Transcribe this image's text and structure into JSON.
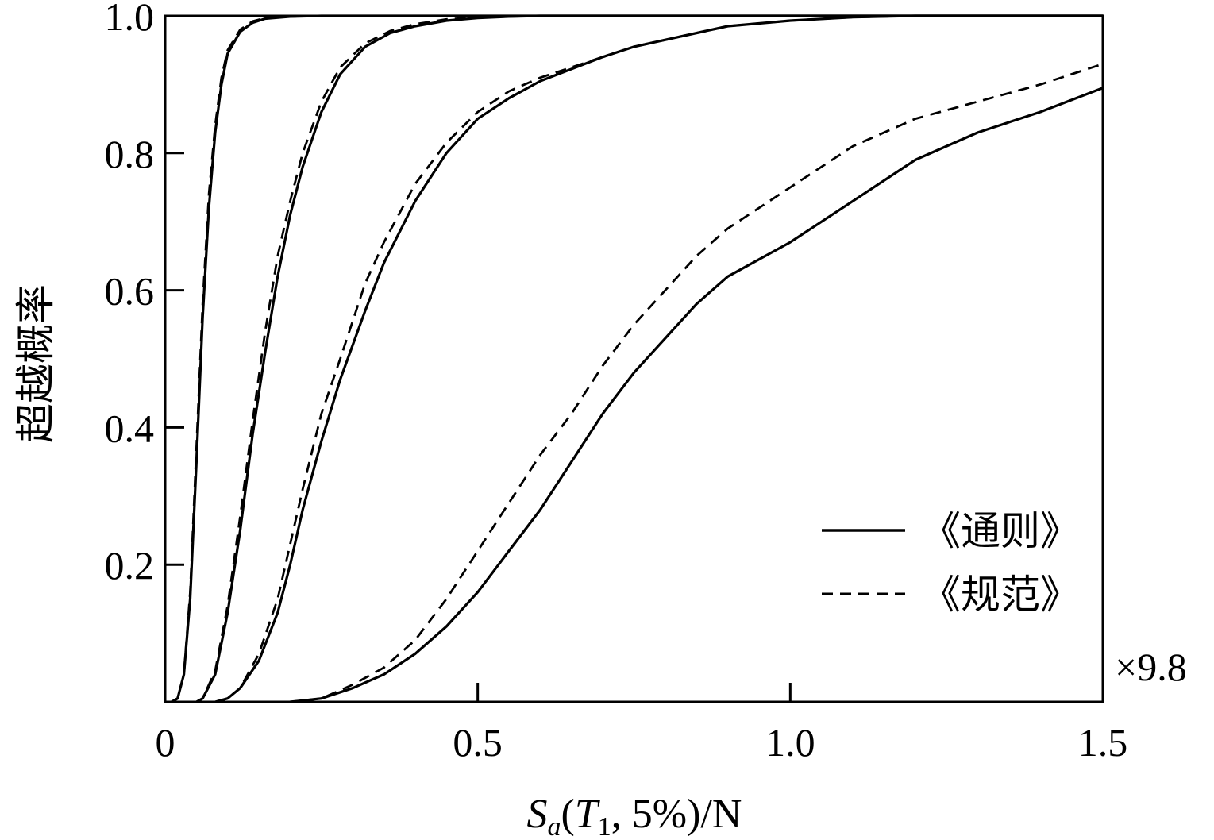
{
  "chart_data": {
    "type": "line",
    "xlim": [
      0,
      1.5
    ],
    "ylim": [
      0,
      1.0
    ],
    "x_ticks": [
      0,
      0.5,
      1.0,
      1.5
    ],
    "x_tick_labels": [
      "0",
      "0.5",
      "1.0",
      "1.5"
    ],
    "y_ticks": [
      0.2,
      0.4,
      0.6,
      0.8,
      1.0
    ],
    "y_tick_labels": [
      "0.2",
      "0.4",
      "0.6",
      "0.8",
      "1.0"
    ],
    "x_multiplier": "×9.8",
    "xlabel": {
      "main": "S",
      "sub": "a",
      "open": "(",
      "t": "T",
      "t_sub": "1",
      "rest": ", 5%)/N"
    },
    "ylabel": "超越概率",
    "grid": false,
    "legend_position": "right",
    "legend": [
      {
        "label": "《通则》",
        "style": "solid"
      },
      {
        "label": "《规范》",
        "style": "dashed"
      }
    ],
    "series": [
      {
        "style": "solid",
        "x": [
          0.01,
          0.02,
          0.03,
          0.04,
          0.05,
          0.06,
          0.07,
          0.08,
          0.09,
          0.1,
          0.12,
          0.14,
          0.16,
          0.2,
          0.25,
          0.3
        ],
        "y": [
          0,
          0.005,
          0.04,
          0.15,
          0.35,
          0.56,
          0.72,
          0.83,
          0.9,
          0.945,
          0.977,
          0.99,
          0.996,
          0.999,
          1.0,
          1.0
        ]
      },
      {
        "style": "dashed",
        "x": [
          0.01,
          0.02,
          0.03,
          0.04,
          0.05,
          0.06,
          0.07,
          0.08,
          0.09,
          0.1,
          0.12,
          0.14,
          0.16,
          0.2,
          0.25,
          0.3
        ],
        "y": [
          0,
          0.005,
          0.04,
          0.16,
          0.37,
          0.58,
          0.74,
          0.84,
          0.91,
          0.95,
          0.98,
          0.992,
          0.997,
          0.999,
          1.0,
          1.0
        ]
      },
      {
        "style": "solid",
        "x": [
          0.05,
          0.06,
          0.08,
          0.1,
          0.12,
          0.14,
          0.16,
          0.18,
          0.2,
          0.22,
          0.25,
          0.28,
          0.32,
          0.36,
          0.4,
          0.45,
          0.5,
          0.55,
          0.6,
          0.7,
          0.8
        ],
        "y": [
          0,
          0.005,
          0.04,
          0.13,
          0.25,
          0.39,
          0.51,
          0.62,
          0.71,
          0.78,
          0.86,
          0.915,
          0.955,
          0.975,
          0.985,
          0.993,
          0.997,
          0.999,
          1.0,
          1.0,
          1.0
        ]
      },
      {
        "style": "dashed",
        "x": [
          0.05,
          0.06,
          0.08,
          0.1,
          0.12,
          0.14,
          0.16,
          0.18,
          0.2,
          0.22,
          0.25,
          0.28,
          0.32,
          0.36,
          0.4,
          0.45,
          0.5,
          0.55,
          0.6,
          0.7,
          0.8
        ],
        "y": [
          0,
          0.005,
          0.045,
          0.14,
          0.27,
          0.41,
          0.54,
          0.65,
          0.73,
          0.8,
          0.875,
          0.925,
          0.96,
          0.978,
          0.988,
          0.995,
          0.998,
          0.999,
          1.0,
          1.0,
          1.0
        ]
      },
      {
        "style": "solid",
        "x": [
          0.08,
          0.1,
          0.12,
          0.15,
          0.18,
          0.2,
          0.22,
          0.25,
          0.28,
          0.3,
          0.32,
          0.35,
          0.4,
          0.45,
          0.5,
          0.55,
          0.6,
          0.7,
          0.75,
          0.8,
          0.9,
          1.0,
          1.1,
          1.2
        ],
        "y": [
          0,
          0.005,
          0.02,
          0.06,
          0.13,
          0.2,
          0.28,
          0.38,
          0.47,
          0.52,
          0.57,
          0.64,
          0.73,
          0.8,
          0.85,
          0.88,
          0.905,
          0.94,
          0.955,
          0.965,
          0.985,
          0.993,
          0.998,
          1.0
        ]
      },
      {
        "style": "dashed",
        "x": [
          0.08,
          0.1,
          0.12,
          0.15,
          0.18,
          0.2,
          0.22,
          0.25,
          0.28,
          0.3,
          0.32,
          0.35,
          0.4,
          0.45,
          0.5,
          0.55,
          0.6,
          0.7,
          0.75,
          0.8,
          0.9,
          1.0,
          1.1,
          1.2
        ],
        "y": [
          0,
          0.005,
          0.02,
          0.07,
          0.15,
          0.23,
          0.31,
          0.42,
          0.5,
          0.555,
          0.61,
          0.67,
          0.755,
          0.815,
          0.86,
          0.89,
          0.91,
          0.94,
          0.955,
          0.965,
          0.985,
          0.993,
          0.998,
          1.0
        ]
      },
      {
        "style": "solid",
        "x": [
          0.2,
          0.25,
          0.3,
          0.35,
          0.4,
          0.45,
          0.5,
          0.55,
          0.6,
          0.65,
          0.7,
          0.75,
          0.8,
          0.85,
          0.9,
          1.0,
          1.1,
          1.2,
          1.3,
          1.4,
          1.5
        ],
        "y": [
          0,
          0.005,
          0.02,
          0.04,
          0.07,
          0.11,
          0.16,
          0.22,
          0.28,
          0.35,
          0.42,
          0.48,
          0.53,
          0.58,
          0.62,
          0.67,
          0.73,
          0.79,
          0.83,
          0.86,
          0.895
        ]
      },
      {
        "style": "dashed",
        "x": [
          0.2,
          0.25,
          0.3,
          0.35,
          0.4,
          0.45,
          0.5,
          0.55,
          0.6,
          0.65,
          0.7,
          0.75,
          0.8,
          0.85,
          0.9,
          1.0,
          1.1,
          1.2,
          1.3,
          1.4,
          1.5
        ],
        "y": [
          0,
          0.005,
          0.025,
          0.05,
          0.09,
          0.15,
          0.22,
          0.29,
          0.36,
          0.42,
          0.49,
          0.55,
          0.6,
          0.65,
          0.69,
          0.75,
          0.81,
          0.85,
          0.875,
          0.9,
          0.93
        ]
      }
    ]
  }
}
